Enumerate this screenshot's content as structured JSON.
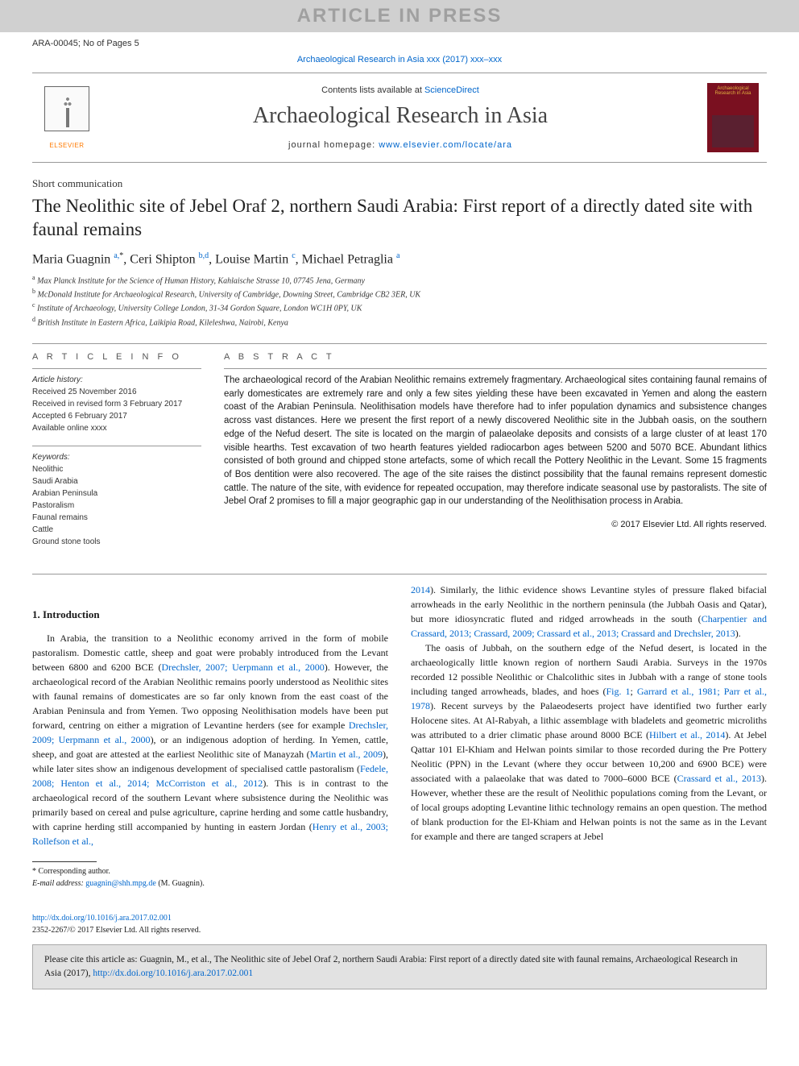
{
  "watermark": "ARTICLE IN PRESS",
  "topbar": {
    "left": "ARA-00045; No of Pages 5"
  },
  "journal_ref_line": "Archaeological Research in Asia xxx (2017) xxx–xxx",
  "masthead": {
    "contents_prefix": "Contents lists available at ",
    "contents_link": "ScienceDirect",
    "journal_name": "Archaeological Research in Asia",
    "homepage_prefix": "journal homepage: ",
    "homepage_link": "www.elsevier.com/locate/ara",
    "elsevier_label": "ELSEVIER",
    "cover_label": "Archaeological Research in Asia"
  },
  "short_comm": "Short communication",
  "title": "The Neolithic site of Jebel Oraf 2, northern Saudi Arabia: First report of a directly dated site with faunal remains",
  "authors": [
    {
      "name": "Maria Guagnin ",
      "affs": "a,",
      "star": "*"
    },
    {
      "name": ", Ceri Shipton ",
      "affs": "b,d",
      "star": ""
    },
    {
      "name": ", Louise Martin ",
      "affs": "c",
      "star": ""
    },
    {
      "name": ", Michael Petraglia ",
      "affs": "a",
      "star": ""
    }
  ],
  "affiliations": [
    {
      "sup": "a",
      "text": " Max Planck Institute for the Science of Human History, Kahlaische Strasse 10, 07745 Jena, Germany"
    },
    {
      "sup": "b",
      "text": " McDonald Institute for Archaeological Research, University of Cambridge, Downing Street, Cambridge CB2 3ER, UK"
    },
    {
      "sup": "c",
      "text": " Institute of Archaeology, University College London, 31-34 Gordon Square, London WC1H 0PY, UK"
    },
    {
      "sup": "d",
      "text": " British Institute in Eastern Africa, Laikipia Road, Kileleshwa, Nairobi, Kenya"
    }
  ],
  "article_info": {
    "heading": "a r t i c l e   i n f o",
    "history_label": "Article history:",
    "history": [
      "Received 25 November 2016",
      "Received in revised form 3 February 2017",
      "Accepted 6 February 2017",
      "Available online xxxx"
    ],
    "keywords_label": "Keywords:",
    "keywords": [
      "Neolithic",
      "Saudi Arabia",
      "Arabian Peninsula",
      "Pastoralism",
      "Faunal remains",
      "Cattle",
      "Ground stone tools"
    ]
  },
  "abstract": {
    "heading": "a b s t r a c t",
    "text": "The archaeological record of the Arabian Neolithic remains extremely fragmentary. Archaeological sites containing faunal remains of early domesticates are extremely rare and only a few sites yielding these have been excavated in Yemen and along the eastern coast of the Arabian Peninsula. Neolithisation models have therefore had to infer population dynamics and subsistence changes across vast distances. Here we present the first report of a newly discovered Neolithic site in the Jubbah oasis, on the southern edge of the Nefud desert. The site is located on the margin of palaeolake deposits and consists of a large cluster of at least 170 visible hearths. Test excavation of two hearth features yielded radiocarbon ages between 5200 and 5070 BCE. Abundant lithics consisted of both ground and chipped stone artefacts, some of which recall the Pottery Neolithic in the Levant. Some 15 fragments of Bos dentition were also recovered. The age of the site raises the distinct possibility that the faunal remains represent domestic cattle. The nature of the site, with evidence for repeated occupation, may therefore indicate seasonal use by pastoralists. The site of Jebel Oraf 2 promises to fill a major geographic gap in our understanding of the Neolithisation process in Arabia.",
    "copyright": "© 2017 Elsevier Ltd. All rights reserved."
  },
  "section1_head": "1. Introduction",
  "intro": {
    "p1a": "In Arabia, the transition to a Neolithic economy arrived in the form of mobile pastoralism. Domestic cattle, sheep and goat were probably introduced from the Levant between 6800 and 6200 BCE (",
    "p1_l1": "Drechsler, 2007; Uerpmann et al., 2000",
    "p1b": "). However, the archaeological record of the Arabian Neolithic remains poorly understood as Neolithic sites with faunal remains of domesticates are so far only known from the east coast of the Arabian Peninsula and from Yemen. Two opposing Neolithisation models have been put forward, centring on either a migration of Levantine herders (see for example ",
    "p1_l2": "Drechsler, 2009; Uerpmann et al., 2000",
    "p1c": "), or an indigenous adoption of herding. In Yemen, cattle, sheep, and goat are attested at the earliest Neolithic site of Manayzah (",
    "p1_l3": "Martin et al., 2009",
    "p1d": "), while later sites show an indigenous development of specialised cattle pastoralism (",
    "p1_l4": "Fedele, 2008; Henton et al., 2014; McCorriston et al., 2012",
    "p1e": "). This is in contrast to the archaeological record of the southern Levant where subsistence during the Neolithic was primarily based on cereal and pulse agriculture, caprine herding and some cattle husbandry, with caprine herding still accompanied by hunting in eastern Jordan (",
    "p1_l5": "Henry et al., 2003; Rollefson et al.,",
    "p2_l1": "2014",
    "p2a": "). Similarly, the lithic evidence shows Levantine styles of pressure flaked bifacial arrowheads in the early Neolithic in the northern peninsula (the Jubbah Oasis and Qatar), but more idiosyncratic fluted and ridged arrowheads in the south (",
    "p2_l2": "Charpentier and Crassard, 2013; Crassard, 2009; Crassard et al., 2013; Crassard and Drechsler, 2013",
    "p2b": ").",
    "p3a": "The oasis of Jubbah, on the southern edge of the Nefud desert, is located in the archaeologically little known region of northern Saudi Arabia. Surveys in the 1970s recorded 12 possible Neolithic or Chalcolithic sites in Jubbah with a range of stone tools including tanged arrowheads, blades, and hoes (",
    "p3_l1": "Fig. 1",
    "p3a2": "; ",
    "p3_l1b": "Garrard et al., 1981; Parr et al., 1978",
    "p3b": "). Recent surveys by the Palaeodeserts project have identified two further early Holocene sites. At Al-Rabyah, a lithic assemblage with bladelets and geometric microliths was attributed to a drier climatic phase around 8000 BCE (",
    "p3_l2": "Hilbert et al., 2014",
    "p3c": "). At Jebel Qattar 101 El-Khiam and Helwan points similar to those recorded during the Pre Pottery Neolitic (PPN) in the Levant (where they occur between 10,200 and 6900 BCE) were associated with a palaeolake that was dated to 7000–6000 BCE (",
    "p3_l3": "Crassard et al., 2013",
    "p3d": "). However, whether these are the result of Neolithic populations coming from the Levant, or of local groups adopting Levantine lithic technology remains an open question. The method of blank production for the El-Khiam and Helwan points is not the same as in the Levant for example and there are tanged scrapers at Jebel"
  },
  "footnote": {
    "star": "*",
    "corr": " Corresponding author.",
    "email_label": "E-mail address: ",
    "email": "guagnin@shh.mpg.de",
    "email_who": " (M. Guagnin)."
  },
  "doi": {
    "url": "http://dx.doi.org/10.1016/j.ara.2017.02.001",
    "line2": "2352-2267/© 2017 Elsevier Ltd. All rights reserved."
  },
  "cite_box": {
    "prefix": "Please cite this article as: Guagnin, M., et al., The Neolithic site of Jebel Oraf 2, northern Saudi Arabia: First report of a directly dated site with faunal remains, Archaeological Research in Asia (2017), ",
    "link": "http://dx.doi.org/10.1016/j.ara.2017.02.001"
  },
  "colors": {
    "link": "#0066cc",
    "elsevier_orange": "#ff7a00",
    "cover_bg": "#7a1020",
    "cover_text": "#e0b040",
    "cite_bg": "#e2e2e2",
    "watermark_bg": "#d0d0d0",
    "watermark_fg": "#a0a0a0"
  }
}
